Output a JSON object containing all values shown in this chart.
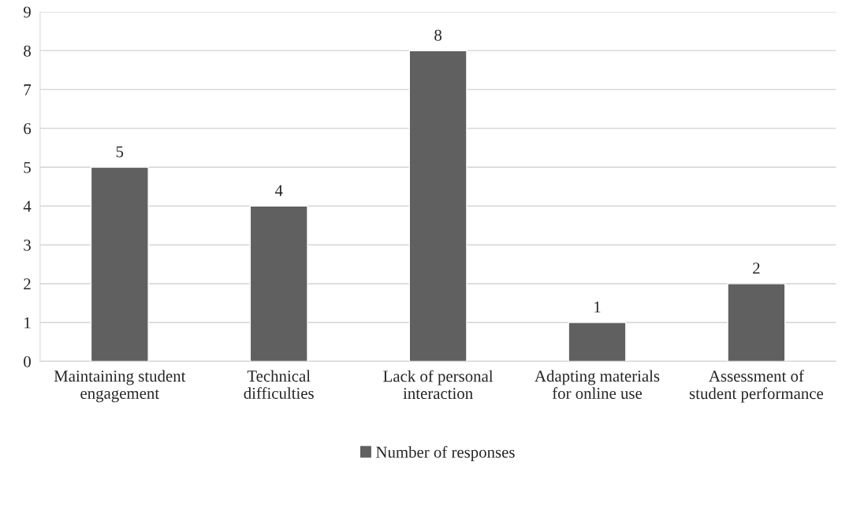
{
  "chart_data": {
    "type": "bar",
    "categories": [
      "Maintaining student\nengagement",
      "Technical\ndifficulties",
      "Lack of personal\ninteraction",
      "Adapting materials\nfor online use",
      "Assessment of\nstudent performance"
    ],
    "series": [
      {
        "name": "Number of responses",
        "color": "#606060",
        "values": [
          5,
          4,
          8,
          1,
          2
        ]
      }
    ],
    "ylim": [
      0,
      9
    ],
    "yticks": [
      0,
      1,
      2,
      3,
      4,
      5,
      6,
      7,
      8,
      9
    ],
    "grid": "y",
    "legend": "bottom",
    "data_labels": true
  }
}
